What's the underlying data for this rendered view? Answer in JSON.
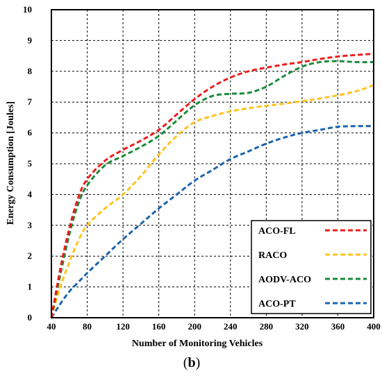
{
  "chart_data": {
    "type": "line",
    "title": "",
    "caption_open": "(",
    "caption_letter": "b",
    "caption_close": ")",
    "xlabel": "Number of Monitoring Vehicles",
    "ylabel": "Energy Consumption [Joules]",
    "xlim": [
      40,
      400
    ],
    "ylim": [
      0,
      10
    ],
    "x_ticks": [
      40,
      80,
      120,
      160,
      200,
      240,
      280,
      320,
      360,
      400
    ],
    "y_ticks": [
      0,
      1,
      2,
      3,
      4,
      5,
      6,
      7,
      8,
      9,
      10
    ],
    "grid": true,
    "grid_style": "dashed",
    "line_style": "dashed",
    "legend_position": "bottom-right",
    "series": [
      {
        "name": "ACO-FL",
        "color": "#ee1c1c",
        "x": [
          40,
          50,
          60,
          70,
          80,
          100,
          120,
          140,
          160,
          180,
          200,
          220,
          240,
          260,
          280,
          300,
          320,
          340,
          360,
          380,
          400
        ],
        "values": [
          0,
          1.6,
          2.9,
          3.9,
          4.5,
          5.1,
          5.45,
          5.75,
          6.1,
          6.6,
          7.1,
          7.5,
          7.8,
          8.0,
          8.12,
          8.22,
          8.3,
          8.4,
          8.48,
          8.53,
          8.57
        ]
      },
      {
        "name": "RACO",
        "color": "#ffc31e",
        "x": [
          40,
          50,
          60,
          70,
          80,
          100,
          120,
          140,
          160,
          180,
          200,
          220,
          240,
          260,
          280,
          300,
          320,
          340,
          360,
          380,
          400
        ],
        "values": [
          0,
          1.0,
          1.8,
          2.5,
          3.0,
          3.55,
          4.0,
          4.6,
          5.3,
          5.9,
          6.35,
          6.55,
          6.7,
          6.8,
          6.88,
          6.95,
          7.03,
          7.12,
          7.22,
          7.35,
          7.55
        ]
      },
      {
        "name": "AODV-ACO",
        "color": "#1b8a3a",
        "x": [
          40,
          50,
          60,
          70,
          80,
          100,
          120,
          140,
          160,
          180,
          200,
          220,
          240,
          260,
          280,
          300,
          320,
          340,
          360,
          380,
          400
        ],
        "values": [
          0,
          1.4,
          2.7,
          3.7,
          4.3,
          4.95,
          5.25,
          5.55,
          5.9,
          6.4,
          6.9,
          7.2,
          7.27,
          7.3,
          7.5,
          7.85,
          8.15,
          8.3,
          8.33,
          8.3,
          8.3
        ]
      },
      {
        "name": "ACO-PT",
        "color": "#1b64ad",
        "x": [
          40,
          50,
          60,
          70,
          80,
          100,
          120,
          140,
          160,
          180,
          200,
          220,
          240,
          260,
          280,
          300,
          320,
          340,
          360,
          380,
          400
        ],
        "values": [
          0,
          0.45,
          0.85,
          1.15,
          1.45,
          2.0,
          2.55,
          3.05,
          3.55,
          4.0,
          4.45,
          4.8,
          5.15,
          5.4,
          5.65,
          5.85,
          6.0,
          6.1,
          6.2,
          6.22,
          6.22
        ]
      }
    ]
  }
}
